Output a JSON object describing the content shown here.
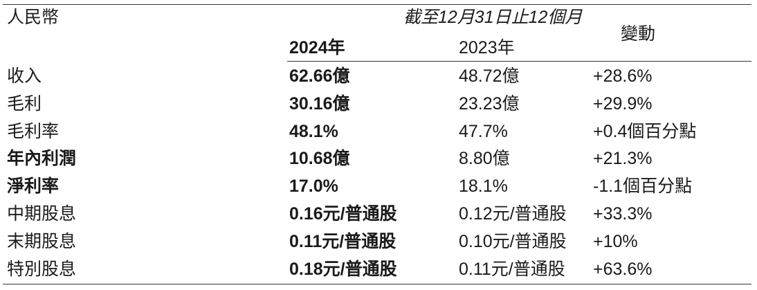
{
  "header": {
    "currency": "人民幣",
    "period": "截至12月31日止12個月",
    "year_current": "2024年",
    "year_prior": "2023年",
    "change": "變動"
  },
  "rows": [
    {
      "label": "收入",
      "label_bold": false,
      "current": "62.66億",
      "prior": "48.72億",
      "change": "+28.6%"
    },
    {
      "label": "毛利",
      "label_bold": false,
      "current": "30.16億",
      "prior": "23.23億",
      "change": "+29.9%"
    },
    {
      "label": "毛利率",
      "label_bold": false,
      "current": "48.1%",
      "prior": "47.7%",
      "change": "+0.4個百分點"
    },
    {
      "label": "年內利潤",
      "label_bold": true,
      "current": "10.68億",
      "prior": "8.80億",
      "change": "+21.3%"
    },
    {
      "label": "淨利率",
      "label_bold": true,
      "current": "17.0%",
      "prior": "18.1%",
      "change": "-1.1個百分點"
    },
    {
      "label": "中期股息",
      "label_bold": false,
      "current": "0.16元/普通股",
      "prior": "0.12元/普通股",
      "change": "+33.3%"
    },
    {
      "label": "末期股息",
      "label_bold": false,
      "current": "0.11元/普通股",
      "prior": "0.10元/普通股",
      "change": "+10%"
    },
    {
      "label": "特別股息",
      "label_bold": false,
      "current": "0.18元/普通股",
      "prior": "0.11元/普通股",
      "change": "+63.6%"
    }
  ]
}
